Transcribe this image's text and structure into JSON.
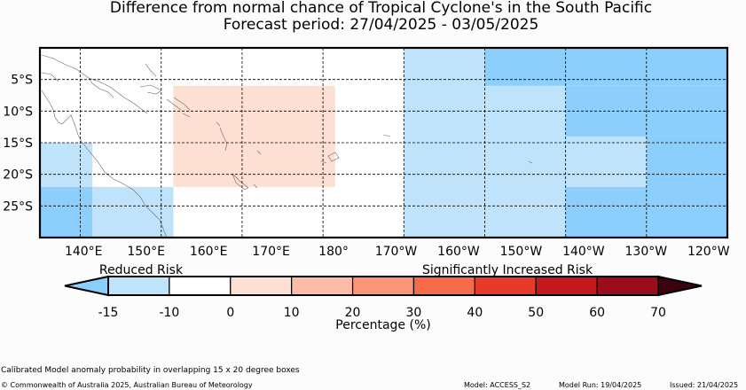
{
  "title": {
    "line1": "Difference from normal chance of Tropical Cyclone's in the South Pacific",
    "line2": "Forecast period: 27/04/2025 - 03/05/2025"
  },
  "map": {
    "lon_range": [
      135,
      220
    ],
    "lat_range": [
      -30,
      0
    ],
    "lat_ticks": [
      {
        "lat": -5,
        "label": "5°S"
      },
      {
        "lat": -10,
        "label": "10°S"
      },
      {
        "lat": -15,
        "label": "15°S"
      },
      {
        "lat": -20,
        "label": "20°S"
      },
      {
        "lat": -25,
        "label": "25°S"
      }
    ],
    "lon_ticks": [
      {
        "lon": 140,
        "label": "140°E"
      },
      {
        "lon": 150,
        "label": "150°E"
      },
      {
        "lon": 160,
        "label": "160°E"
      },
      {
        "lon": 170,
        "label": "170°E"
      },
      {
        "lon": 180,
        "label": "180°"
      },
      {
        "lon": 190,
        "label": "170°W"
      },
      {
        "lon": 200,
        "label": "160°W"
      },
      {
        "lon": 210,
        "label": "150°W"
      },
      {
        "lon": 220,
        "label": "140°W"
      },
      {
        "lon": 230,
        "label": "130°W"
      },
      {
        "lon": 240,
        "label": "120°W"
      }
    ],
    "gridlines": "dashed",
    "boxes": [
      {
        "lon0": 135,
        "lon1": 141.5,
        "lat0": -30,
        "lat1": -22,
        "value": -20
      },
      {
        "lon0": 135,
        "lon1": 141.5,
        "lat0": -22,
        "lat1": -15,
        "value": -15
      },
      {
        "lon0": 141.5,
        "lon1": 151.5,
        "lat0": -30,
        "lat1": -22,
        "value": -15
      },
      {
        "lon0": 151.5,
        "lon1": 171.5,
        "lat0": -22,
        "lat1": -6,
        "value": 5
      },
      {
        "lon0": 180,
        "lon1": 190,
        "lat0": -30,
        "lat1": 0,
        "value": -15
      },
      {
        "lon0": 190,
        "lon1": 200,
        "lat0": -30,
        "lat1": -6,
        "value": -15
      },
      {
        "lon0": 200,
        "lon1": 210,
        "lat0": -22,
        "lat1": -14,
        "value": -15
      },
      {
        "lon0": 190,
        "lon1": 245,
        "lat0": -6,
        "lat1": 0,
        "value": -20
      },
      {
        "lon0": 200,
        "lon1": 245,
        "lat0": -14,
        "lat1": -6,
        "value": -20
      },
      {
        "lon0": 210,
        "lon1": 245,
        "lat0": -22,
        "lat1": -14,
        "value": -20
      },
      {
        "lon0": 200,
        "lon1": 245,
        "lat0": -30,
        "lat1": -22,
        "value": -20
      }
    ]
  },
  "colorbar": {
    "label_reduced": "Reduced Risk",
    "label_increased": "Significantly Increased Risk",
    "xlabel": "Percentage (%)",
    "ticks": [
      "-15",
      "-10",
      "0",
      "10",
      "20",
      "30",
      "40",
      "50",
      "60",
      "70"
    ],
    "under_color": "#8ccffc",
    "over_color": "#3b0210",
    "bins": [
      {
        "from": -15,
        "to": -10,
        "color": "#bfe3fb"
      },
      {
        "from": -10,
        "to": 0,
        "color": "#ffffff"
      },
      {
        "from": 0,
        "to": 10,
        "color": "#fde0d3"
      },
      {
        "from": 10,
        "to": 20,
        "color": "#fcbca6"
      },
      {
        "from": 20,
        "to": 30,
        "color": "#fa9577"
      },
      {
        "from": 30,
        "to": 40,
        "color": "#f66a4a"
      },
      {
        "from": 40,
        "to": 50,
        "color": "#e83a2a"
      },
      {
        "from": 50,
        "to": 60,
        "color": "#c3181c"
      },
      {
        "from": 60,
        "to": 70,
        "color": "#9b0d1a"
      }
    ]
  },
  "footer": {
    "method": "Calibrated Model anomaly probability in overlapping 15 x 20 degree boxes",
    "copyright": "© Commonwealth of Australia 2025, Australian Bureau of Meteorology",
    "model": "Model: ACCESS_S2",
    "model_run": "Model Run: 19/04/2025",
    "issued": "Issued: 21/04/2025"
  },
  "colors": {
    "increased_light": "#fde0d3",
    "reduced_light": "#bfe3fb",
    "reduced_strong": "#8ccffc"
  }
}
